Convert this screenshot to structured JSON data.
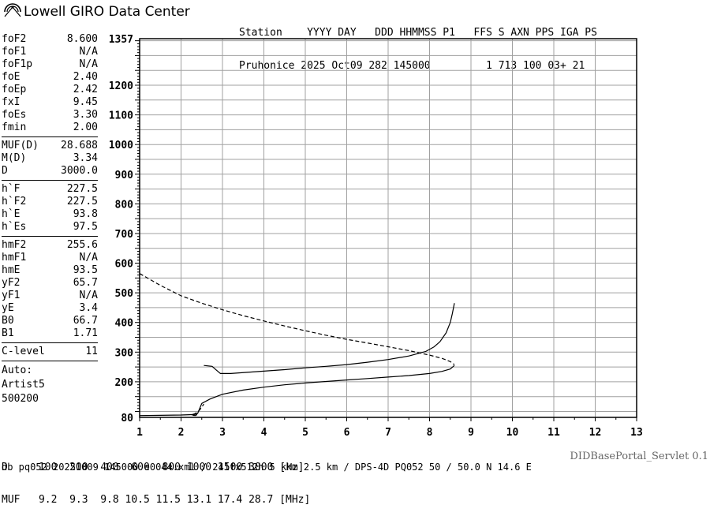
{
  "header": {
    "logo_text": "Lowell GIRO Data Center",
    "labels": "Station    YYYY DAY   DDD HHMMSS P1   FFS S AXN PPS IGA PS",
    "values": "Pruhonice 2025 Oct09 282 145000         1 713 100 03+ 21"
  },
  "params": {
    "groups": [
      [
        {
          "name": "foF2",
          "value": "8.600"
        },
        {
          "name": "foF1",
          "value": "N/A"
        },
        {
          "name": "foF1p",
          "value": "N/A"
        },
        {
          "name": "foE",
          "value": "2.40"
        },
        {
          "name": "foEp",
          "value": "2.42"
        },
        {
          "name": "fxI",
          "value": "9.45"
        },
        {
          "name": "foEs",
          "value": "3.30"
        },
        {
          "name": "fmin",
          "value": "2.00"
        }
      ],
      [
        {
          "name": "MUF(D)",
          "value": "28.688"
        },
        {
          "name": "M(D)",
          "value": "3.34"
        },
        {
          "name": "D",
          "value": "3000.0"
        }
      ],
      [
        {
          "name": "h`F",
          "value": "227.5"
        },
        {
          "name": "h`F2",
          "value": "227.5"
        },
        {
          "name": "h`E",
          "value": "93.8"
        },
        {
          "name": "h`Es",
          "value": "97.5"
        }
      ],
      [
        {
          "name": "hmF2",
          "value": "255.6"
        },
        {
          "name": "hmF1",
          "value": "N/A"
        },
        {
          "name": "hmE",
          "value": "93.5"
        },
        {
          "name": "yF2",
          "value": "65.7"
        },
        {
          "name": "yF1",
          "value": "N/A"
        },
        {
          "name": "yE",
          "value": "3.4"
        },
        {
          "name": "B0",
          "value": "66.7"
        },
        {
          "name": "B1",
          "value": "1.71"
        }
      ],
      [
        {
          "name": "C-level",
          "value": "11"
        }
      ]
    ],
    "auto": [
      "Auto:",
      "Artist5",
      "500200"
    ]
  },
  "footer": {
    "d_line": "D     100  200  400  600  800 1000 1500 3000 [km]",
    "muf_line": "MUF   9.2  9.3  9.8 10.5 11.5 13.1 17.4 28.7 [MHz]",
    "db_line": "db pq052 20251009 145000 e0044.xml / 241fx512h 5 kHz 2.5 km / DPS-4D PQ052 50 / 50.0 N 14.6 E",
    "brand": "DIDBasePortal_Servlet 0.1"
  },
  "chart_data": {
    "type": "line",
    "xlim": [
      1,
      13
    ],
    "ylim": [
      80,
      1357
    ],
    "x_ticks": [
      1,
      2,
      3,
      4,
      5,
      6,
      7,
      8,
      9,
      10,
      11,
      12,
      13
    ],
    "y_ticks": [
      80,
      200,
      300,
      400,
      500,
      600,
      700,
      800,
      900,
      1000,
      1100,
      1200,
      1357
    ],
    "grid": true,
    "series": [
      {
        "style": "solid",
        "x": [
          1.0,
          1.5,
          2.0,
          2.2,
          2.35,
          2.4,
          2.5,
          2.7,
          3.0,
          3.5,
          4.0,
          4.5,
          5.0,
          5.5,
          6.0,
          6.5,
          7.0,
          7.5,
          8.0,
          8.3,
          8.5,
          8.6
        ],
        "y": [
          86,
          87,
          88,
          89,
          90,
          93,
          127,
          142,
          158,
          172,
          182,
          190,
          196,
          201,
          206,
          211,
          216,
          221,
          228,
          235,
          243,
          255
        ]
      },
      {
        "style": "solid",
        "x": [
          2.55,
          2.75,
          2.85,
          2.95,
          3.2,
          3.6,
          4.0,
          4.5,
          5.0,
          5.5,
          6.0,
          6.5,
          7.0,
          7.5,
          7.9,
          8.1,
          8.25,
          8.4,
          8.5,
          8.55,
          8.6
        ],
        "y": [
          255,
          252,
          240,
          228,
          228,
          232,
          236,
          241,
          247,
          252,
          258,
          266,
          275,
          287,
          302,
          317,
          335,
          365,
          400,
          430,
          465
        ]
      },
      {
        "style": "dashed",
        "x": [
          1.0,
          1.5,
          2.0,
          2.5,
          3.0,
          3.5,
          4.0,
          4.5,
          5.0,
          5.5,
          6.0,
          6.5,
          7.0,
          7.5,
          8.0,
          8.3,
          8.5,
          8.6
        ],
        "y": [
          565,
          525,
          490,
          465,
          443,
          423,
          405,
          388,
          372,
          357,
          343,
          331,
          318,
          305,
          290,
          279,
          268,
          258
        ]
      },
      {
        "style": "dashed",
        "x": [
          2.3,
          2.45,
          2.55
        ],
        "y": [
          88,
          105,
          125
        ]
      },
      {
        "style": "solid",
        "x": [
          2.25,
          2.3,
          2.35,
          2.38,
          2.35,
          2.28
        ],
        "y": [
          88,
          91,
          93,
          89,
          86,
          87
        ]
      }
    ]
  }
}
